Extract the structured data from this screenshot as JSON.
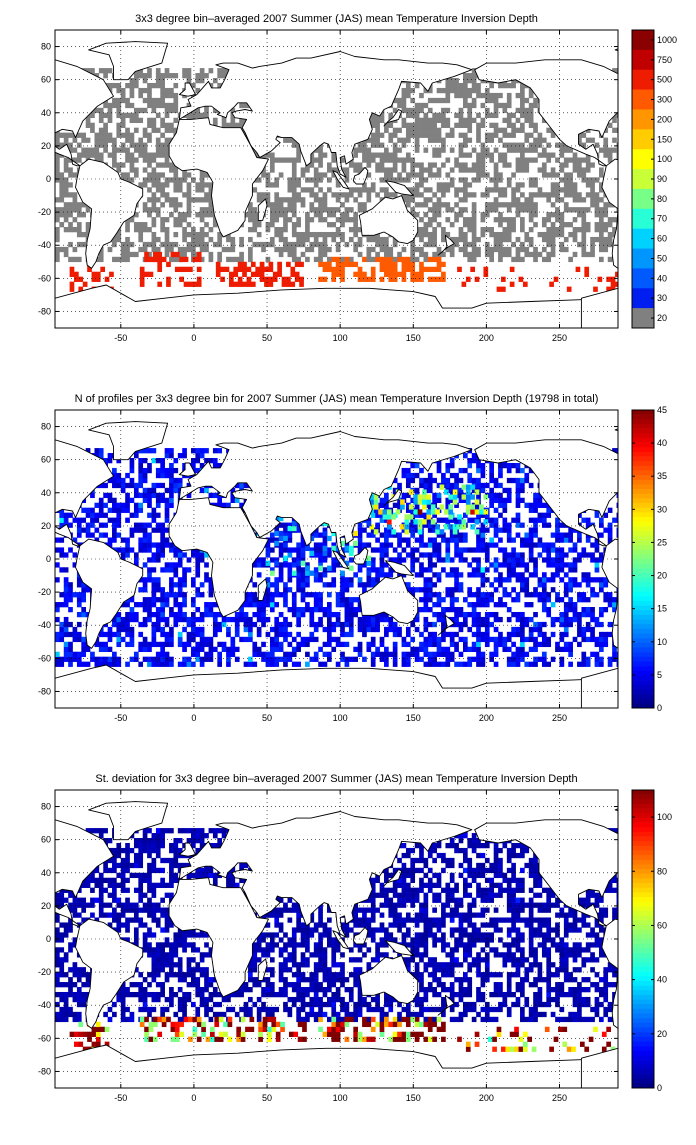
{
  "chart_data": [
    {
      "type": "heatmap",
      "title": "3x3 degree bin–averaged 2007 Summer (JAS) mean Temperature Inversion Depth",
      "xlim": [
        -95,
        290
      ],
      "ylim": [
        -90,
        90
      ],
      "x_ticks": [
        -50,
        0,
        50,
        100,
        150,
        200,
        250
      ],
      "y_ticks": [
        80,
        60,
        40,
        20,
        0,
        -20,
        -40,
        -60,
        -80
      ],
      "grid": true,
      "colorbar": {
        "scale": "categorical",
        "tick_labels": [
          "1000",
          "750",
          "500",
          "300",
          "200",
          "150",
          "100",
          "90",
          "80",
          "70",
          "60",
          "50",
          "40",
          "30",
          "20"
        ],
        "colors": [
          "#8b0000",
          "#c00000",
          "#ee1c00",
          "#ff5a00",
          "#ff9600",
          "#ffcc00",
          "#ffff00",
          "#c8ff37",
          "#78ff87",
          "#28ffd7",
          "#00d2ff",
          "#0096ff",
          "#005aff",
          "#001ef0",
          "#808080"
        ]
      },
      "field": "inversion_depth",
      "bin_size_deg": 3,
      "regions": [
        {
          "lon": [
            -95,
            290
          ],
          "lat": [
            -50,
            65
          ],
          "value": 20,
          "coverage": 0.55
        },
        {
          "lon": [
            -85,
            -55
          ],
          "lat": [
            -68,
            -50
          ],
          "value": 400,
          "coverage": 0.5
        },
        {
          "lon": [
            -40,
            5
          ],
          "lat": [
            -65,
            -45
          ],
          "value": 400,
          "coverage": 0.35
        },
        {
          "lon": [
            15,
            75
          ],
          "lat": [
            -65,
            -52
          ],
          "value": 500,
          "coverage": 0.55
        },
        {
          "lon": [
            85,
            170
          ],
          "lat": [
            -62,
            -48
          ],
          "value": 300,
          "coverage": 0.55
        },
        {
          "lon": [
            180,
            290
          ],
          "lat": [
            -68,
            -55
          ],
          "value": 400,
          "coverage": 0.2
        }
      ]
    },
    {
      "type": "heatmap",
      "title": "N of profiles per 3x3 degree bin for 2007 Summer (JAS) mean Temperature Inversion Depth  (19798 in total)",
      "xlim": [
        -95,
        290
      ],
      "ylim": [
        -90,
        90
      ],
      "x_ticks": [
        -50,
        0,
        50,
        100,
        150,
        200,
        250
      ],
      "y_ticks": [
        80,
        60,
        40,
        20,
        0,
        -20,
        -40,
        -60,
        -80
      ],
      "grid": true,
      "colorbar": {
        "scale": "linear",
        "range": [
          0,
          45
        ],
        "ticks": [
          0,
          5,
          10,
          15,
          20,
          25,
          30,
          35,
          40,
          45
        ],
        "colormap": "jet"
      },
      "field": "profile_count",
      "bin_size_deg": 3,
      "regions": [
        {
          "lon": [
            -95,
            290
          ],
          "lat": [
            -65,
            65
          ],
          "value": 5,
          "coverage": 0.55
        },
        {
          "lon": [
            120,
            200
          ],
          "lat": [
            15,
            45
          ],
          "value": 20,
          "coverage": 0.35
        },
        {
          "lon": [
            40,
            120
          ],
          "lat": [
            -10,
            25
          ],
          "value": 15,
          "coverage": 0.2
        }
      ]
    },
    {
      "type": "heatmap",
      "title": "St. deviation for 3x3 degree bin–averaged 2007 Summer (JAS) mean Temperature Inversion Depth",
      "xlim": [
        -95,
        290
      ],
      "ylim": [
        -90,
        90
      ],
      "x_ticks": [
        -50,
        0,
        50,
        100,
        150,
        200,
        250
      ],
      "y_ticks": [
        80,
        60,
        40,
        20,
        0,
        -20,
        -40,
        -60,
        -80
      ],
      "grid": true,
      "colorbar": {
        "scale": "linear",
        "range": [
          0,
          110
        ],
        "ticks": [
          0,
          20,
          40,
          60,
          80,
          100
        ],
        "colormap": "jet"
      },
      "field": "std_deviation",
      "bin_size_deg": 3,
      "regions": [
        {
          "lon": [
            -95,
            290
          ],
          "lat": [
            -50,
            65
          ],
          "value": 5,
          "coverage": 0.6
        },
        {
          "lon": [
            -85,
            -55
          ],
          "lat": [
            -68,
            -50
          ],
          "value": 105,
          "coverage": 0.5
        },
        {
          "lon": [
            -40,
            75
          ],
          "lat": [
            -62,
            -48
          ],
          "value": 90,
          "coverage": 0.35
        },
        {
          "lon": [
            85,
            170
          ],
          "lat": [
            -62,
            -48
          ],
          "value": 100,
          "coverage": 0.5
        },
        {
          "lon": [
            180,
            290
          ],
          "lat": [
            -68,
            -55
          ],
          "value": 90,
          "coverage": 0.25
        }
      ]
    }
  ]
}
